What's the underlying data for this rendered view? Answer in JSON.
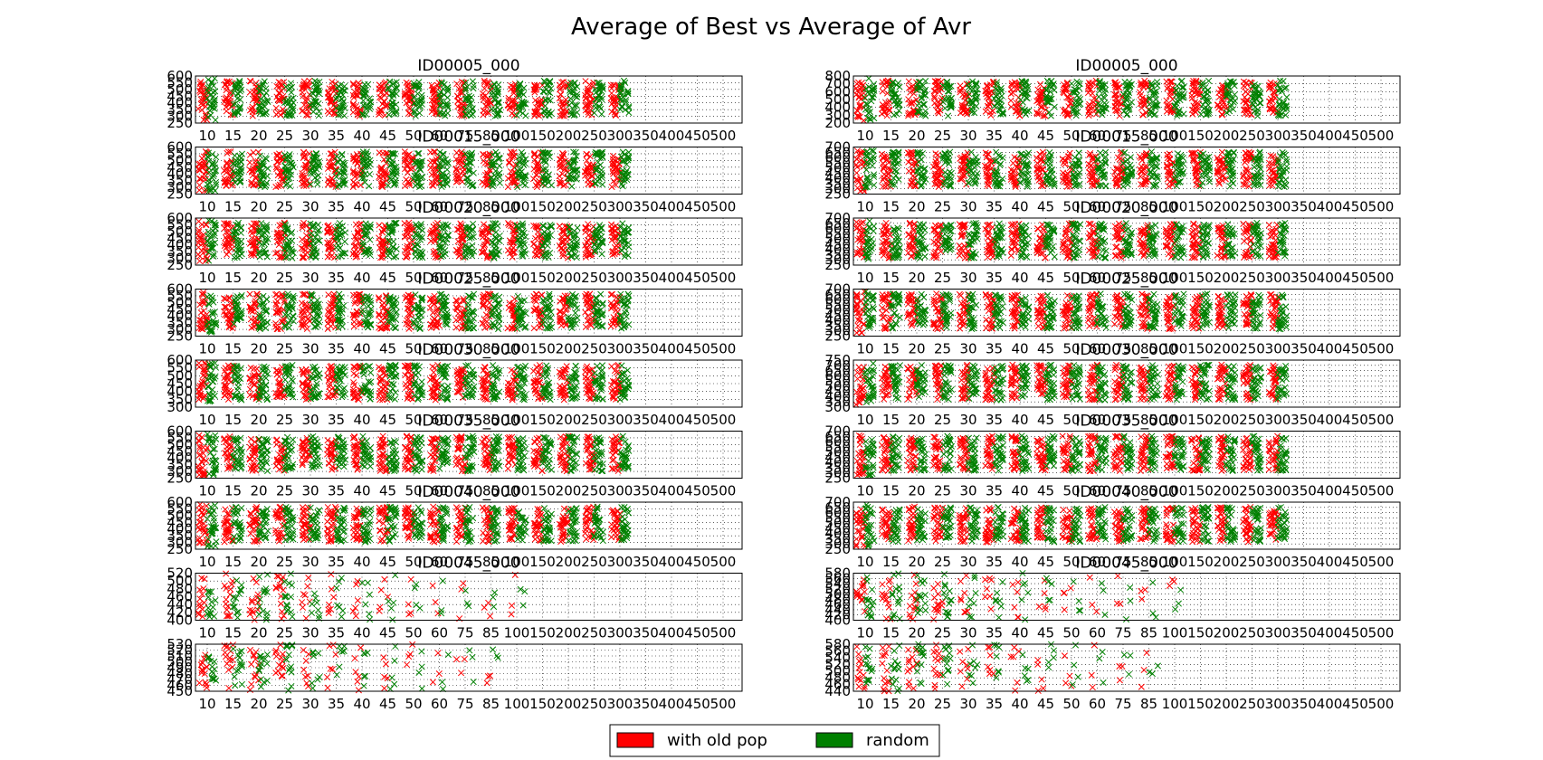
{
  "figure": {
    "suptitle": "Average of Best vs Average of Avr"
  },
  "legend": {
    "placement": "bottom-center",
    "items": [
      {
        "label": "with old pop",
        "color": "#ff0000"
      },
      {
        "label": "random",
        "color": "#008000"
      }
    ]
  },
  "chart_data": {
    "type": "scatter",
    "marker": "x",
    "grid": true,
    "x_categories": [
      "10",
      "15",
      "20",
      "25",
      "30",
      "35",
      "40",
      "45",
      "50",
      "60",
      "75",
      "85",
      "100",
      "150",
      "200",
      "250",
      "300",
      "350",
      "400",
      "450",
      "500"
    ],
    "series": [
      {
        "name": "with old pop",
        "color": "#ff0000"
      },
      {
        "name": "random",
        "color": "#008000"
      }
    ],
    "panels": [
      {
        "title": "ID00005_000",
        "ylim": [
          250,
          600
        ],
        "yticks": [
          250,
          300,
          350,
          400,
          450,
          500,
          550,
          600
        ],
        "n_cat": 17
      },
      {
        "title": "ID00005_000",
        "ylim": [
          200,
          800
        ],
        "yticks": [
          200,
          300,
          400,
          500,
          600,
          700,
          800
        ],
        "n_cat": 17
      },
      {
        "title": "ID00015_000",
        "ylim": [
          250,
          600
        ],
        "yticks": [
          250,
          300,
          350,
          400,
          450,
          500,
          550,
          600
        ],
        "n_cat": 17
      },
      {
        "title": "ID00015_000",
        "ylim": [
          250,
          700
        ],
        "yticks": [
          250,
          300,
          350,
          400,
          450,
          500,
          550,
          600,
          650,
          700
        ],
        "n_cat": 17
      },
      {
        "title": "ID00020_000",
        "ylim": [
          250,
          600
        ],
        "yticks": [
          250,
          300,
          350,
          400,
          450,
          500,
          550,
          600
        ],
        "n_cat": 17
      },
      {
        "title": "ID00020_000",
        "ylim": [
          250,
          700
        ],
        "yticks": [
          250,
          300,
          350,
          400,
          450,
          500,
          550,
          600,
          650,
          700
        ],
        "n_cat": 17
      },
      {
        "title": "ID00025_000",
        "ylim": [
          250,
          600
        ],
        "yticks": [
          250,
          300,
          350,
          400,
          450,
          500,
          550,
          600
        ],
        "n_cat": 17
      },
      {
        "title": "ID00025_000",
        "ylim": [
          250,
          700
        ],
        "yticks": [
          250,
          300,
          350,
          400,
          450,
          500,
          550,
          600,
          650,
          700
        ],
        "n_cat": 17
      },
      {
        "title": "ID00030_000",
        "ylim": [
          300,
          600
        ],
        "yticks": [
          300,
          350,
          400,
          450,
          500,
          550,
          600
        ],
        "n_cat": 17
      },
      {
        "title": "ID00030_000",
        "ylim": [
          300,
          750
        ],
        "yticks": [
          300,
          350,
          400,
          450,
          500,
          550,
          600,
          650,
          700,
          750
        ],
        "n_cat": 17
      },
      {
        "title": "ID00035_000",
        "ylim": [
          250,
          600
        ],
        "yticks": [
          250,
          300,
          350,
          400,
          450,
          500,
          550,
          600
        ],
        "n_cat": 17
      },
      {
        "title": "ID00035_000",
        "ylim": [
          250,
          700
        ],
        "yticks": [
          250,
          300,
          350,
          400,
          450,
          500,
          550,
          600,
          650,
          700
        ],
        "n_cat": 17
      },
      {
        "title": "ID00040_000",
        "ylim": [
          250,
          600
        ],
        "yticks": [
          250,
          300,
          350,
          400,
          450,
          500,
          550,
          600
        ],
        "n_cat": 17
      },
      {
        "title": "ID00040_000",
        "ylim": [
          250,
          700
        ],
        "yticks": [
          250,
          300,
          350,
          400,
          450,
          500,
          550,
          600,
          650,
          700
        ],
        "n_cat": 17
      },
      {
        "title": "ID00045_000",
        "ylim": [
          400,
          520
        ],
        "yticks": [
          400,
          420,
          440,
          460,
          480,
          500,
          520
        ],
        "n_cat": 13
      },
      {
        "title": "ID00045_000",
        "ylim": [
          400,
          580
        ],
        "yticks": [
          400,
          420,
          440,
          460,
          480,
          500,
          520,
          540,
          560,
          580
        ],
        "n_cat": 13
      },
      {
        "title": "",
        "ylim": [
          450,
          530
        ],
        "yticks": [
          450,
          460,
          470,
          480,
          490,
          500,
          510,
          520,
          530
        ],
        "n_cat": 12
      },
      {
        "title": "",
        "ylim": [
          440,
          580
        ],
        "yticks": [
          440,
          460,
          480,
          500,
          520,
          540,
          560,
          580
        ],
        "n_cat": 12
      }
    ]
  }
}
